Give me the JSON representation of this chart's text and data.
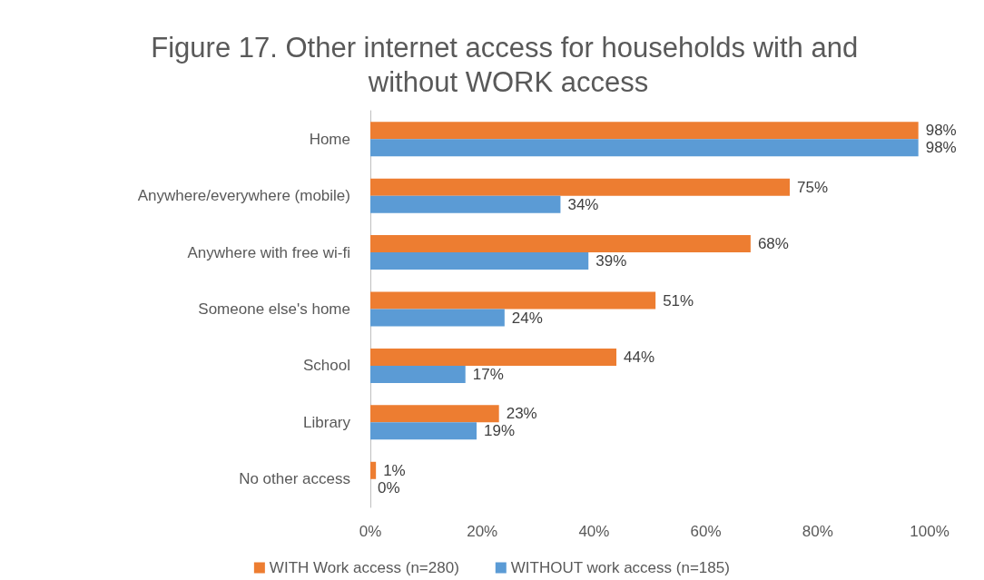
{
  "chart_data": {
    "type": "bar",
    "orientation": "horizontal",
    "title": "Figure 17. Other internet access for households with and without WORK access",
    "categories": [
      "Home",
      "Anywhere/everywhere (mobile)",
      "Anywhere with free wi-fi",
      "Someone else's home",
      "School",
      "Library",
      "No other access"
    ],
    "series": [
      {
        "name": "WITH Work access (n=280)",
        "color": "#ed7d31",
        "values": [
          98,
          75,
          68,
          51,
          44,
          23,
          1
        ],
        "value_labels": [
          "98%",
          "75%",
          "68%",
          "51%",
          "44%",
          "23%",
          "1%"
        ]
      },
      {
        "name": "WITHOUT work access (n=185)",
        "color": "#5b9bd5",
        "values": [
          98,
          34,
          39,
          24,
          17,
          19,
          0
        ],
        "value_labels": [
          "98%",
          "34%",
          "39%",
          "24%",
          "17%",
          "19%",
          "0%"
        ]
      }
    ],
    "xlim": [
      0,
      100
    ],
    "xticks": [
      {
        "value": 0,
        "label": "0%"
      },
      {
        "value": 20,
        "label": "20%"
      },
      {
        "value": 40,
        "label": "40%"
      },
      {
        "value": 60,
        "label": "60%"
      },
      {
        "value": 80,
        "label": "80%"
      },
      {
        "value": 100,
        "label": "100%"
      }
    ],
    "grid": false,
    "legend": "bottom"
  }
}
